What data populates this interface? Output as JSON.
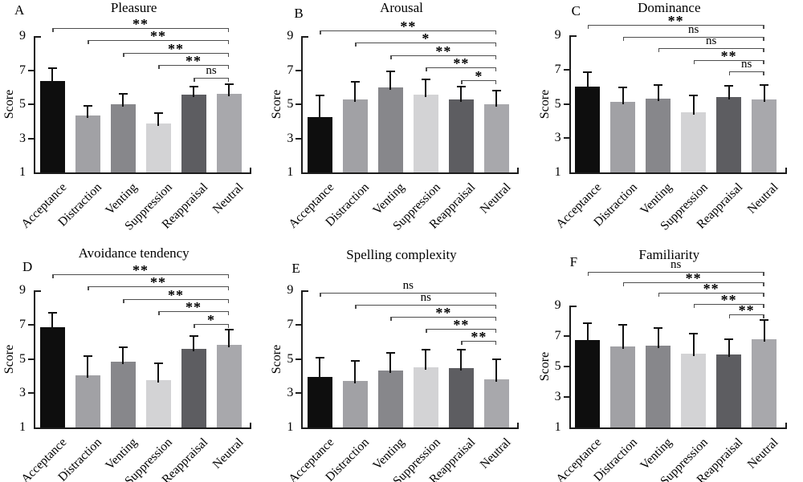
{
  "figure": {
    "ylabel": "Score",
    "ylim": [
      1,
      9
    ],
    "yticks": [
      9,
      7,
      5,
      3,
      1
    ],
    "categories": [
      "Acceptance",
      "Distraction",
      "Venting",
      "Suppression",
      "Reappraisal",
      "Neutral"
    ],
    "bar_colors": [
      "#0e0e0e",
      "#a1a1a5",
      "#87878b",
      "#d3d3d5",
      "#5d5d61",
      "#a8a8ac"
    ],
    "axis_color": "#1c1c1c",
    "bracket_color": "#4d4d4d",
    "grid": "off",
    "legend": "none"
  },
  "chart_data": [
    {
      "type": "bar",
      "panel": "A",
      "title": "Pleasure",
      "ylabel": "Score",
      "ylim": [
        1,
        9
      ],
      "categories": [
        "Acceptance",
        "Distraction",
        "Venting",
        "Suppression",
        "Reappraisal",
        "Neutral"
      ],
      "values": [
        6.35,
        4.35,
        5.0,
        3.85,
        5.55,
        5.6
      ],
      "errors": [
        0.75,
        0.55,
        0.6,
        0.65,
        0.5,
        0.6
      ],
      "significance": [
        {
          "pair": [
            "Acceptance",
            "Neutral"
          ],
          "label": "**"
        },
        {
          "pair": [
            "Distraction",
            "Neutral"
          ],
          "label": "**"
        },
        {
          "pair": [
            "Venting",
            "Neutral"
          ],
          "label": "**"
        },
        {
          "pair": [
            "Suppression",
            "Neutral"
          ],
          "label": "**"
        },
        {
          "pair": [
            "Reappraisal",
            "Neutral"
          ],
          "label": "ns"
        }
      ]
    },
    {
      "type": "bar",
      "panel": "B",
      "title": "Arousal",
      "ylabel": "Score",
      "ylim": [
        1,
        9
      ],
      "categories": [
        "Acceptance",
        "Distraction",
        "Venting",
        "Suppression",
        "Reappraisal",
        "Neutral"
      ],
      "values": [
        4.25,
        5.3,
        6.0,
        5.55,
        5.3,
        5.0
      ],
      "errors": [
        1.25,
        1.0,
        0.95,
        0.9,
        0.75,
        0.8
      ],
      "significance": [
        {
          "pair": [
            "Acceptance",
            "Neutral"
          ],
          "label": "**"
        },
        {
          "pair": [
            "Distraction",
            "Neutral"
          ],
          "label": "*"
        },
        {
          "pair": [
            "Venting",
            "Neutral"
          ],
          "label": "**"
        },
        {
          "pair": [
            "Suppression",
            "Neutral"
          ],
          "label": "**"
        },
        {
          "pair": [
            "Reappraisal",
            "Neutral"
          ],
          "label": "*"
        }
      ]
    },
    {
      "type": "bar",
      "panel": "C",
      "title": "Dominance",
      "ylabel": "Score",
      "ylim": [
        1,
        9
      ],
      "categories": [
        "Acceptance",
        "Distraction",
        "Venting",
        "Suppression",
        "Reappraisal",
        "Neutral"
      ],
      "values": [
        6.0,
        5.1,
        5.3,
        4.5,
        5.4,
        5.25
      ],
      "errors": [
        0.85,
        0.85,
        0.8,
        1.0,
        0.65,
        0.85
      ],
      "significance": [
        {
          "pair": [
            "Acceptance",
            "Neutral"
          ],
          "label": "**"
        },
        {
          "pair": [
            "Distraction",
            "Neutral"
          ],
          "label": "ns"
        },
        {
          "pair": [
            "Venting",
            "Neutral"
          ],
          "label": "ns"
        },
        {
          "pair": [
            "Suppression",
            "Neutral"
          ],
          "label": "**"
        },
        {
          "pair": [
            "Reappraisal",
            "Neutral"
          ],
          "label": "ns"
        }
      ]
    },
    {
      "type": "bar",
      "panel": "D",
      "title": "Avoidance tendency",
      "ylabel": "Score",
      "ylim": [
        1,
        9
      ],
      "categories": [
        "Acceptance",
        "Distraction",
        "Venting",
        "Suppression",
        "Reappraisal",
        "Neutral"
      ],
      "values": [
        6.85,
        4.05,
        4.85,
        3.75,
        5.6,
        5.8
      ],
      "errors": [
        0.85,
        1.1,
        0.85,
        1.0,
        0.75,
        0.9
      ],
      "significance": [
        {
          "pair": [
            "Acceptance",
            "Neutral"
          ],
          "label": "**"
        },
        {
          "pair": [
            "Distraction",
            "Neutral"
          ],
          "label": "**"
        },
        {
          "pair": [
            "Venting",
            "Neutral"
          ],
          "label": "**"
        },
        {
          "pair": [
            "Suppression",
            "Neutral"
          ],
          "label": "**"
        },
        {
          "pair": [
            "Reappraisal",
            "Neutral"
          ],
          "label": "*"
        }
      ]
    },
    {
      "type": "bar",
      "panel": "E",
      "title": "Spelling complexity",
      "ylabel": "Score",
      "ylim": [
        1,
        9
      ],
      "categories": [
        "Acceptance",
        "Distraction",
        "Venting",
        "Suppression",
        "Reappraisal",
        "Neutral"
      ],
      "values": [
        3.95,
        3.7,
        4.3,
        4.5,
        4.45,
        3.8
      ],
      "errors": [
        1.1,
        1.2,
        1.05,
        1.05,
        1.1,
        1.2
      ],
      "significance": [
        {
          "pair": [
            "Acceptance",
            "Neutral"
          ],
          "label": "ns"
        },
        {
          "pair": [
            "Distraction",
            "Neutral"
          ],
          "label": "ns"
        },
        {
          "pair": [
            "Venting",
            "Neutral"
          ],
          "label": "**"
        },
        {
          "pair": [
            "Suppression",
            "Neutral"
          ],
          "label": "**"
        },
        {
          "pair": [
            "Reappraisal",
            "Neutral"
          ],
          "label": "**"
        }
      ]
    },
    {
      "type": "bar",
      "panel": "F",
      "title": "Familiarity",
      "ylabel": "Score",
      "ylim": [
        1,
        9
      ],
      "categories": [
        "Acceptance",
        "Distraction",
        "Venting",
        "Suppression",
        "Reappraisal",
        "Neutral"
      ],
      "values": [
        6.75,
        6.3,
        6.35,
        5.85,
        5.8,
        6.8
      ],
      "errors": [
        1.1,
        1.45,
        1.2,
        1.3,
        1.0,
        1.25
      ],
      "significance": [
        {
          "pair": [
            "Acceptance",
            "Neutral"
          ],
          "label": "ns"
        },
        {
          "pair": [
            "Distraction",
            "Neutral"
          ],
          "label": "**"
        },
        {
          "pair": [
            "Venting",
            "Neutral"
          ],
          "label": "**"
        },
        {
          "pair": [
            "Suppression",
            "Neutral"
          ],
          "label": "**"
        },
        {
          "pair": [
            "Reappraisal",
            "Neutral"
          ],
          "label": "**"
        }
      ]
    }
  ]
}
